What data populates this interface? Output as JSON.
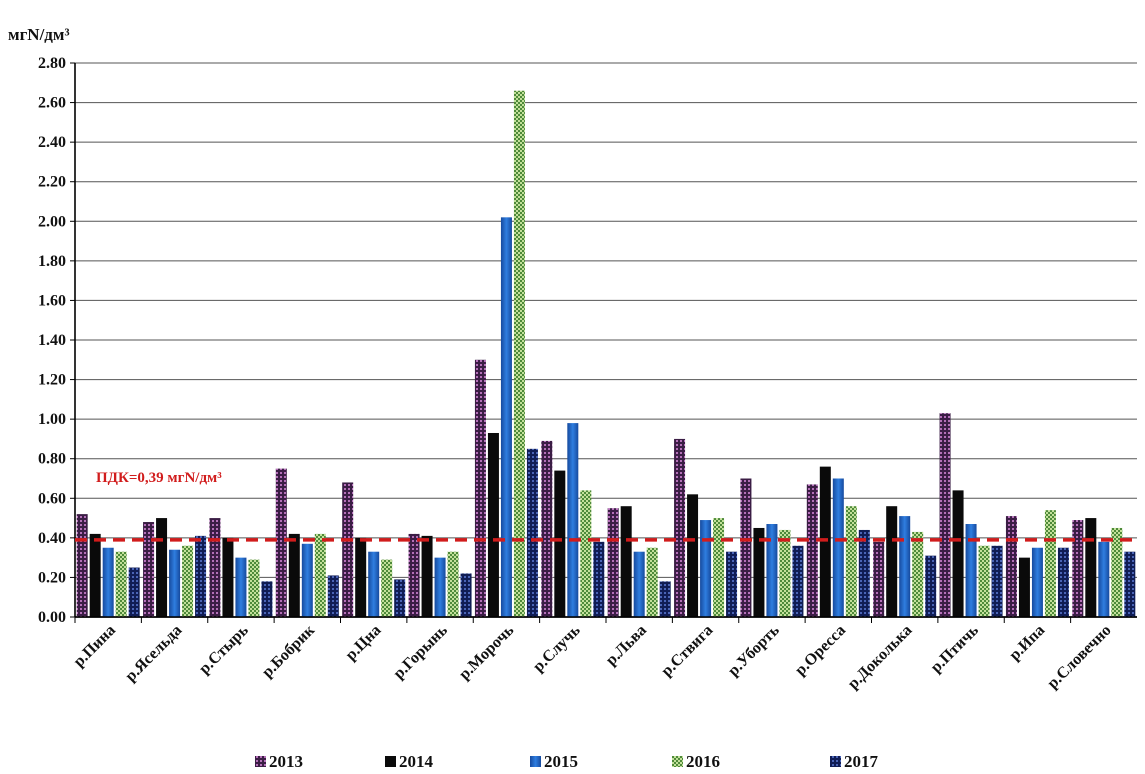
{
  "chart_data": {
    "type": "bar",
    "ylabel": "мгN/дм³",
    "ylim": [
      0,
      2.8
    ],
    "yticks": [
      "0.00",
      "0.20",
      "0.40",
      "0.60",
      "0.80",
      "1.00",
      "1.20",
      "1.40",
      "1.60",
      "1.80",
      "2.00",
      "2.20",
      "2.40",
      "2.60",
      "2.80"
    ],
    "grid": true,
    "legend_position": "bottom",
    "categories": [
      "р.Пина",
      "р.Ясельда",
      "р.Стырь",
      "р.Бобрик",
      "р.Цна",
      "р.Горынь",
      "р.Морочь",
      "р.Случь",
      "р.Льва",
      "р.Ствига",
      "р.Уборть",
      "р.Оресса",
      "р.Доколька",
      "р.Птичь",
      "р.Ипа",
      "р.Словечно"
    ],
    "series": [
      {
        "name": "2013",
        "color": "#5a2a5a",
        "pattern": "dots-purple",
        "values": [
          0.52,
          0.48,
          0.5,
          0.75,
          0.68,
          0.42,
          1.3,
          0.89,
          0.55,
          0.9,
          0.7,
          0.67,
          0.38,
          1.03,
          0.51,
          0.49
        ]
      },
      {
        "name": "2014",
        "color": "#000000",
        "pattern": "solid-black",
        "values": [
          0.42,
          0.5,
          0.4,
          0.42,
          0.4,
          0.41,
          0.93,
          0.74,
          0.56,
          0.62,
          0.45,
          0.76,
          0.56,
          0.64,
          0.3,
          0.5
        ]
      },
      {
        "name": "2015",
        "color": "#1f5fbf",
        "pattern": "solid-blue",
        "values": [
          0.35,
          0.34,
          0.3,
          0.37,
          0.33,
          0.3,
          2.02,
          0.98,
          0.33,
          0.49,
          0.47,
          0.7,
          0.51,
          0.47,
          0.35,
          0.38
        ]
      },
      {
        "name": "2016",
        "color": "#8fbf5a",
        "pattern": "checker-green",
        "values": [
          0.33,
          0.36,
          0.29,
          0.42,
          0.29,
          0.33,
          2.66,
          0.64,
          0.35,
          0.5,
          0.44,
          0.56,
          0.43,
          0.36,
          0.54,
          0.45
        ]
      },
      {
        "name": "2017",
        "color": "#1a2a6a",
        "pattern": "dots-navy",
        "values": [
          0.25,
          0.41,
          0.18,
          0.21,
          0.19,
          0.22,
          0.85,
          0.38,
          0.18,
          0.33,
          0.36,
          0.44,
          0.31,
          0.36,
          0.35,
          0.33
        ]
      }
    ],
    "threshold": {
      "value": 0.39,
      "label": "ПДК=0,39 мгN/дм³",
      "color": "#d11c1c"
    }
  }
}
